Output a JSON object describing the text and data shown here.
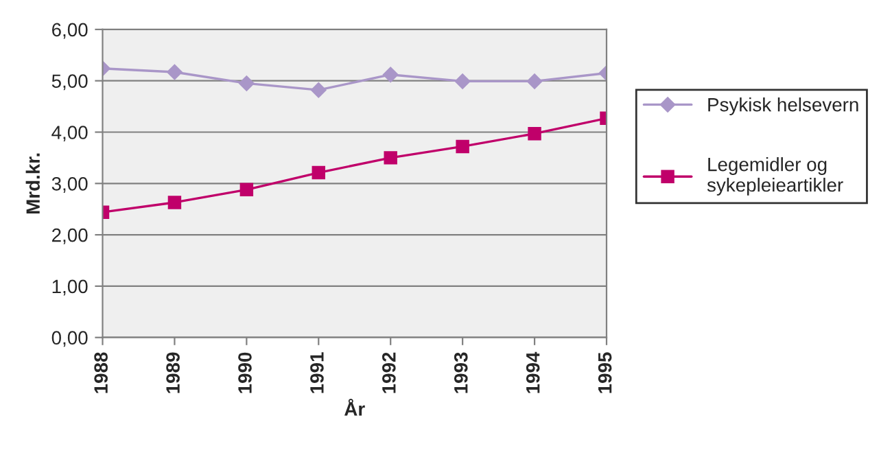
{
  "chart_data": {
    "type": "line",
    "xlabel": "År",
    "ylabel": "Mrd.kr.",
    "categories": [
      "1988",
      "1989",
      "1990",
      "1991",
      "1992",
      "1993",
      "1994",
      "1995"
    ],
    "series": [
      {
        "name": "Psykisk helsevern",
        "color": "#a996c8",
        "marker": "diamond",
        "values": [
          5.24,
          5.17,
          4.95,
          4.82,
          5.12,
          4.99,
          4.99,
          5.15
        ]
      },
      {
        "name": "Legemidler og sykepleieartikler",
        "color": "#c0006a",
        "marker": "square",
        "values": [
          2.44,
          2.63,
          2.88,
          3.21,
          3.5,
          3.72,
          3.97,
          4.27
        ]
      }
    ],
    "ylim": [
      0,
      6
    ],
    "yticks": [
      {
        "value": 0,
        "label": "0,00"
      },
      {
        "value": 1,
        "label": "1,00"
      },
      {
        "value": 2,
        "label": "2,00"
      },
      {
        "value": 3,
        "label": "3,00"
      },
      {
        "value": 4,
        "label": "4,00"
      },
      {
        "value": 5,
        "label": "5,00"
      },
      {
        "value": 6,
        "label": "6,00"
      }
    ],
    "grid": "y",
    "legend": "right"
  }
}
